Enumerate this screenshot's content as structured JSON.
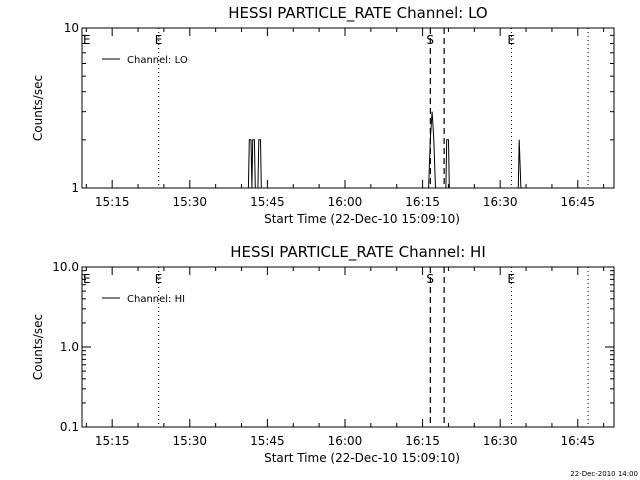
{
  "chart_data": [
    {
      "type": "line",
      "title": "HESSI PARTICLE_RATE Channel: LO",
      "xlabel": "Start Time (22-Dec-10 15:09:10)",
      "ylabel": "Counts/sec",
      "y_scale": "log",
      "xlim": [
        "15:09:10",
        "16:52:00"
      ],
      "ylim": [
        1,
        10
      ],
      "x_ticks": [
        "15:15",
        "15:30",
        "15:45",
        "16:00",
        "16:15",
        "16:30",
        "16:45"
      ],
      "y_ticks": [
        "1",
        "10"
      ],
      "legend": {
        "label": "Channel: LO",
        "placement": "top-left"
      },
      "vlines": [
        {
          "time": "15:24:00",
          "style": "dotted",
          "label": "E"
        },
        {
          "time": "16:16:30",
          "style": "dashed",
          "label": "S"
        },
        {
          "time": "16:19:10",
          "style": "dashed",
          "label": ""
        },
        {
          "time": "16:32:10",
          "style": "dotted",
          "label": "E"
        },
        {
          "time": "16:47:00",
          "style": "dotted",
          "label": ""
        }
      ],
      "edge_label": "E",
      "series": [
        {
          "name": "Channel: LO",
          "points": [
            [
              "15:09:10",
              1
            ],
            [
              "15:41:20",
              1
            ],
            [
              "15:41:30",
              2
            ],
            [
              "15:41:50",
              2
            ],
            [
              "15:42:00",
              1
            ],
            [
              "15:42:10",
              2
            ],
            [
              "15:42:30",
              2
            ],
            [
              "15:42:40",
              1
            ],
            [
              "15:43:10",
              1
            ],
            [
              "15:43:20",
              2
            ],
            [
              "15:43:40",
              2
            ],
            [
              "15:43:50",
              1
            ],
            [
              "16:16:10",
              1
            ],
            [
              "16:16:30",
              2
            ],
            [
              "16:16:50",
              3
            ],
            [
              "16:17:00",
              2.5
            ],
            [
              "16:17:10",
              2
            ],
            [
              "16:17:30",
              1
            ],
            [
              "16:19:30",
              1
            ],
            [
              "16:19:40",
              2
            ],
            [
              "16:20:00",
              2
            ],
            [
              "16:20:10",
              1
            ],
            [
              "16:33:30",
              1
            ],
            [
              "16:33:40",
              2
            ],
            [
              "16:34:00",
              1
            ],
            [
              "16:52:00",
              1
            ]
          ]
        }
      ]
    },
    {
      "type": "line",
      "title": "HESSI PARTICLE_RATE Channel: HI",
      "xlabel": "Start Time (22-Dec-10 15:09:10)",
      "ylabel": "Counts/sec",
      "y_scale": "log",
      "xlim": [
        "15:09:10",
        "16:52:00"
      ],
      "ylim": [
        0.1,
        10
      ],
      "x_ticks": [
        "15:15",
        "15:30",
        "15:45",
        "16:00",
        "16:15",
        "16:30",
        "16:45"
      ],
      "y_ticks": [
        "0.1",
        "1.0",
        "10.0"
      ],
      "legend": {
        "label": "Channel: HI",
        "placement": "top-left"
      },
      "vlines": [
        {
          "time": "15:24:00",
          "style": "dotted",
          "label": "E"
        },
        {
          "time": "16:16:30",
          "style": "dashed",
          "label": "S"
        },
        {
          "time": "16:19:10",
          "style": "dashed",
          "label": ""
        },
        {
          "time": "16:32:10",
          "style": "dotted",
          "label": "E"
        },
        {
          "time": "16:47:00",
          "style": "dotted",
          "label": ""
        }
      ],
      "edge_label": "E",
      "series": [
        {
          "name": "Channel: HI",
          "points": []
        }
      ]
    }
  ],
  "footer": {
    "timestamp": "22-Dec-2010 14:00"
  }
}
